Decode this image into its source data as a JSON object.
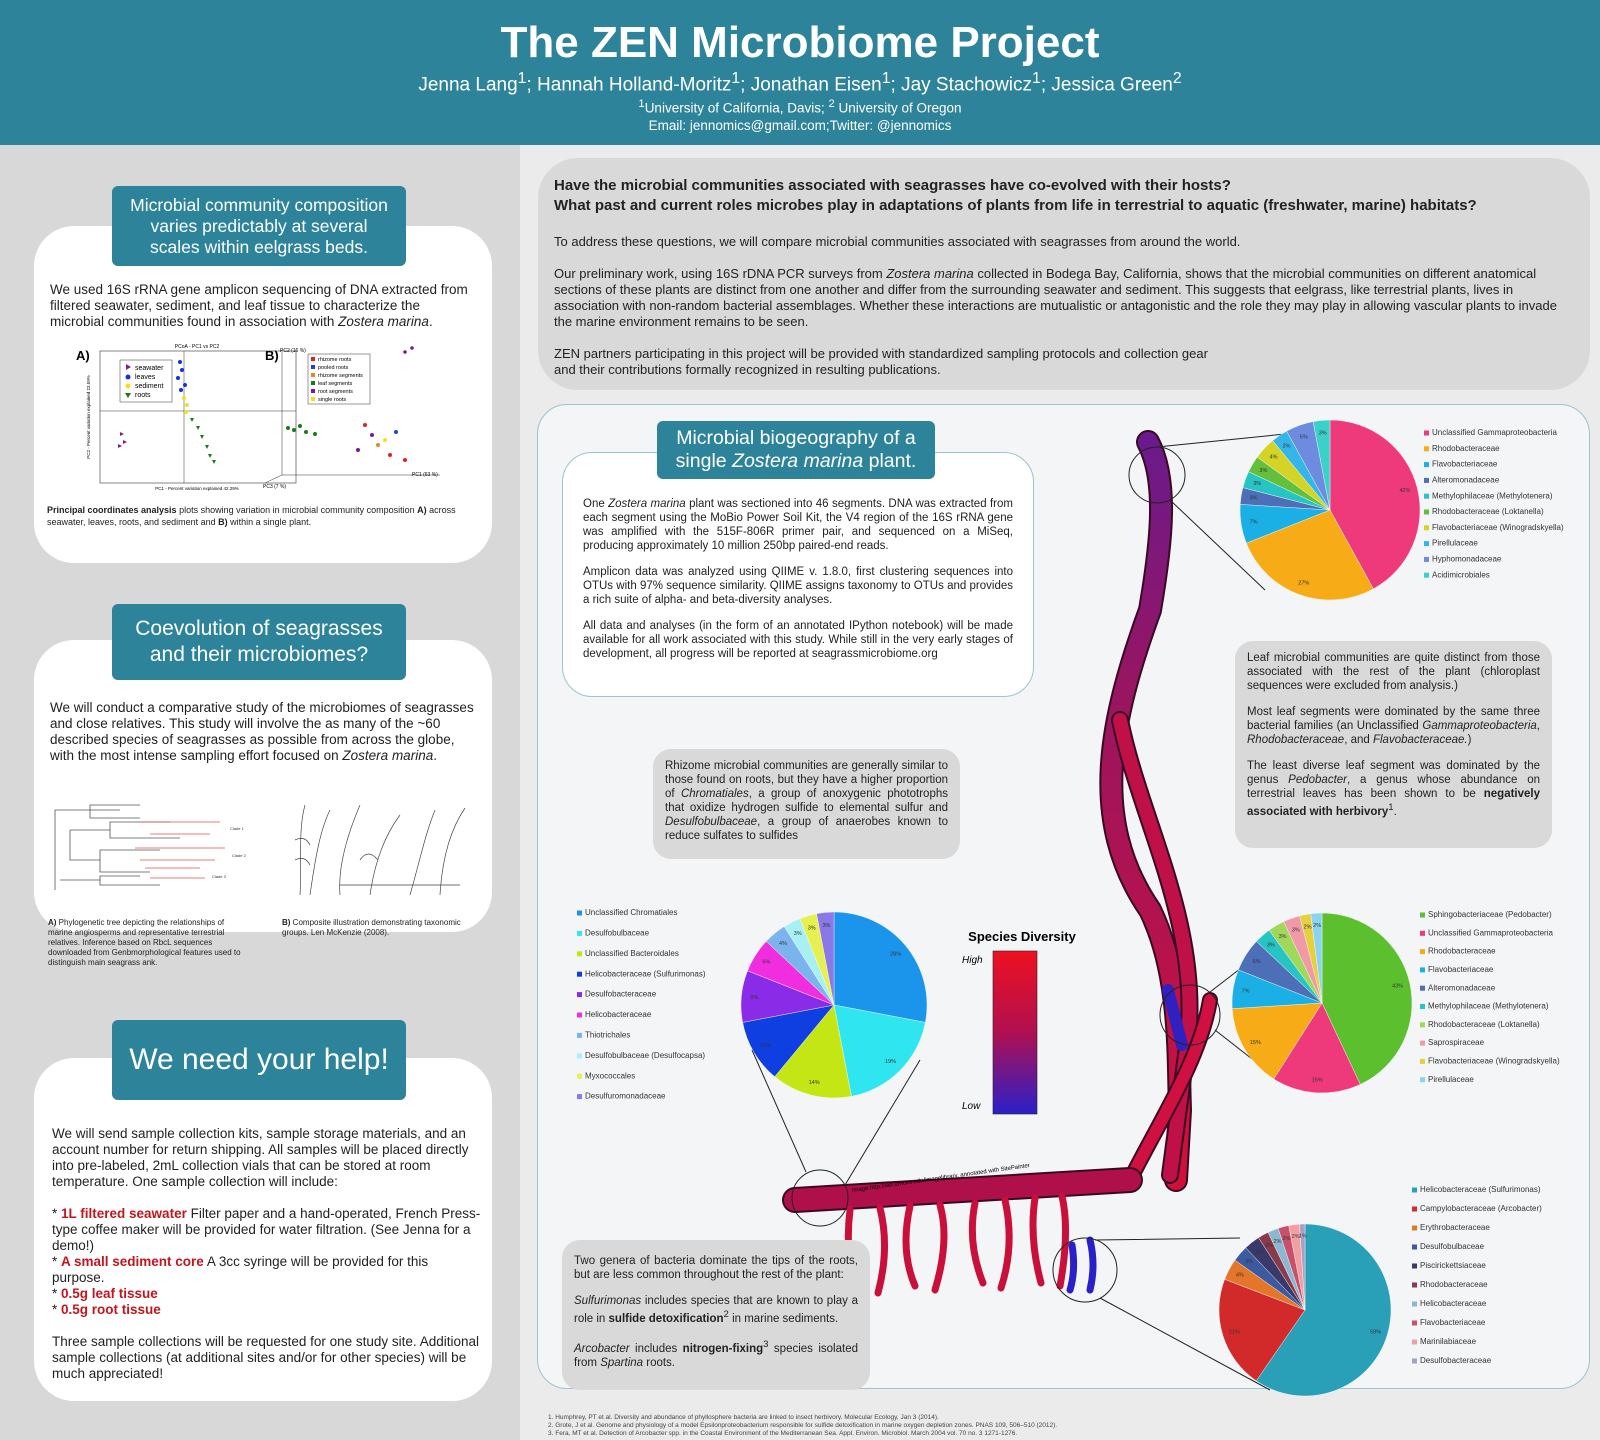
{
  "header": {
    "title": "The ZEN Microbiome Project",
    "authors": [
      "Jenna Lang",
      "1",
      "; Hannah Holland-Moritz",
      "1",
      "; Jonathan Eisen",
      "1",
      "; Jay Stachowicz",
      "1",
      "; Jessica Green",
      "2"
    ],
    "affiliations": [
      "1",
      "University of California, Davis; ",
      "2",
      " University of Oregon"
    ],
    "contact": "Email: jennomics@gmail.com;Twitter: @jennomics"
  },
  "composition": {
    "heading": "Microbial community composition varies predictably at several scales within eelgrass beds.",
    "body": [
      "We used 16S rRNA gene amplicon sequencing of DNA extracted from filtered seawater, sediment, and leaf tissue to characterize the microbial communities found in association with ",
      "Zostera marina",
      "."
    ],
    "figure": {
      "label_a": "A)",
      "label_b": "B)",
      "plot_title": "PCoA - PC1 vs PC2",
      "legend_a": [
        "seawater",
        "leaves",
        "sediment",
        "roots"
      ],
      "legend_b": [
        "rhizome roots",
        "pooled roots",
        "rhizome segments",
        "leaf segments",
        "root segments",
        "single roots"
      ],
      "x_label_a": "PC1 - Percent variation explained 42.29%",
      "y_label_a": "PC2 - Percent variation explained 23.59%",
      "axis_b": [
        "PC2 (16 %)",
        "PC1 (63 %)",
        "PC3 (7 %)"
      ]
    },
    "caption": [
      "Principal coordinates analysis",
      " plots showing variation in microbial community composition ",
      "A)",
      " across seawater, leaves, roots, and sediment and ",
      "B)",
      " within a single plant."
    ]
  },
  "coevolution": {
    "heading": "Coevolution of seagrasses and their microbiomes?",
    "body": [
      "We will conduct a comparative study of the microbiomes of seagrasses and close relatives. This study will involve the as many of the ~60 described species of seagrasses as possible from across the globe, with the most intense sampling effort focused on ",
      "Zostera marina",
      "."
    ],
    "clades": [
      "Clade 1",
      "Clade 2",
      "Clade 3"
    ],
    "tree_caption": [
      "A)",
      " Phylogenetic tree depicting the relationships of marine angiosperms and representative terrestrial relatives. Inference based on RbcL sequences downloaded from Genbmorphological features used to distinguish main seagrass ank."
    ],
    "illustration_caption": [
      "B)",
      " Composite illustration demonstrating taxonomic groups. Len McKenzie (2008)."
    ]
  },
  "help": {
    "heading": "We need your help!",
    "intro": "We will send sample collection kits, sample storage materials, and an account number for return shipping. All samples will be placed directly into pre-labeled, 2mL collection vials that can be stored at room temperature. One sample collection will include:",
    "items": [
      [
        "* ",
        "1L filtered seawater",
        " Filter paper and a hand-operated, French Press-type coffee maker will be provided for water filtration. (See Jenna for a demo!)"
      ],
      [
        "* ",
        "A small sediment core",
        " A 3cc syringe will be provided for this purpose."
      ],
      [
        "* ",
        "0.5g leaf tissue"
      ],
      [
        "* ",
        "0.5g root tissue"
      ]
    ],
    "closing": "Three sample collections will be requested for one study site. Additional sample collections (at additional sites and/or for other species) will be much appreciated!"
  },
  "questions": {
    "lines": [
      "Have  the microbial communities associated with seagrasses have co-evolved with their hosts?",
      "What past and current roles microbes play in adaptations of plants from life in terrestrial to aquatic (freshwater, marine) habitats?"
    ],
    "p1": "To address these questions, we will compare microbial communities associated with seagrasses from around the world.",
    "p2": [
      "Our preliminary work, using 16S rDNA PCR surveys from ",
      "Zostera marina",
      " collected in Bodega Bay, California, shows that the microbial communities on different anatomical sections of these plants are distinct from one another and differ from the surrounding seawater and sediment. This suggests that eelgrass, like terrestrial plants, lives in association with non-random bacterial assemblages. Whether these interactions are mutualistic or antagonistic and the role they may play in allowing vascular plants to invade the marine environment remains to be seen."
    ],
    "p3": [
      "ZEN partners participating in this project will be provided with standardized sampling protocols and collection gear",
      "and their contributions formally recognized in resulting publications."
    ]
  },
  "biogeography": {
    "heading": [
      "Microbial biogeography of a",
      "single ",
      "Zostera marina",
      " plant."
    ],
    "p1": [
      "One ",
      "Zostera marina",
      " plant was sectioned into 46 segments.  DNA was extracted from each segment using the MoBio Power Soil Kit, the V4 region of the 16S rRNA gene was amplified with the 515F-806R primer pair, and sequenced  on a MiSeq, producing approximately  10 million 250bp paired-end  reads."
    ],
    "p2": "Amplicon data was analyzed using  QIIME v. 1.8.0, first clustering sequences  into OTUs with 97% sequence similarity.  QIIME assigns taxonomy to OTUs and provides a rich suite of alpha-  and beta-diversity analyses.",
    "p3": "All data and analyses (in the form of an annotated  IPython notebook) will be made available for all work associated with this study. While still in the very early stages of development,  all progress will be reported at seagrassmicrobiome.org"
  },
  "notes": {
    "rhizome": [
      "Rhizome microbial communities  are generally  similar to those found on roots, but they have a higher proportion of ",
      "Chromatiales",
      ", a group of anoxygenic  phototrophs that oxidize hydrogen sulfide to elemental sulfur and ",
      "Desulfobulbaceae",
      ", a group of anaerobes known to reduce sulfates to sulfides"
    ],
    "leaf": {
      "p1": "Leaf microbial communities are quite distinct from those associated with the rest of the plant (chloroplast sequences  were excluded  from analysis.)",
      "p2": [
        "Most leaf segments  were dominated by the same three bacterial families (an Unclassified ",
        "Gammaproteobacteria",
        ", ",
        "Rhodobacteraceae",
        ", and ",
        "Flavobacteraceae.",
        ")"
      ],
      "p3": [
        "The least diverse leaf segment  was dominated by the genus ",
        "Pedobacter",
        ", a genus whose abundance  on terrestrial leaves has been shown to be ",
        "negatively associated  with herbivory",
        "1",
        "."
      ]
    },
    "roots": {
      "p1": "Two genera of bacteria dominate the tips of the roots, but are less common throughout the rest of the plant:",
      "p2": [
        "Sulfurimonas",
        " includes  species that are known to play a role in ",
        "sulfide detoxification",
        "2",
        " in marine sediments."
      ],
      "p3": [
        "Arcobacter",
        " includes ",
        "nitrogen-fixing",
        "3",
        " species isolated from ",
        "Spartina",
        " roots."
      ]
    }
  },
  "image_credit": "Image:http://ian.umces.edu/imagelibrary, annotated with SitePainter",
  "diversity": {
    "title": "Species Diversity",
    "high": "High",
    "low": "Low"
  },
  "chart_data": [
    {
      "type": "pie",
      "categories": [
        "Unclassified Gammaproteobacteria",
        "Rhodobacteraceae",
        "Flavobacteriaceae",
        "Alteromonadaceae",
        "Methylophilaceae (Methylotenera)",
        "Rhodobacteraceae (Loktanella)",
        "Flavobacteriaceae (Winogradskyella)",
        "Pirellulaceae",
        "Hyphomonadaceae",
        "Acidimicrobiales"
      ],
      "values": [
        42,
        27,
        7,
        3,
        3,
        3,
        4,
        3,
        5,
        3
      ],
      "value_labels": [
        "42%",
        "27%",
        "7%",
        "3%",
        "3%",
        "3%",
        "4%",
        "3%",
        "5%",
        "3%"
      ],
      "colors": [
        "#ee3a7b",
        "#f7ab16",
        "#1ab0e6",
        "#4c6fb8",
        "#27c4c4",
        "#62c03c",
        "#d4d426",
        "#35b6e8",
        "#6d8ce0",
        "#3ad1c8"
      ]
    },
    {
      "type": "pie",
      "categories": [
        "Unclassified Chromatiales",
        "Desulfobulbaceae",
        "Unclassified Bacteroidales",
        "Helicobacteraceae (Sulfurimonas)",
        "Desulfobacteraceae",
        "Helicobacteraceae",
        "Thiotrichales",
        "Desulfobulbaceae (Desulfocapsa)",
        "Myxococcales",
        "Desulfuromonadaceae"
      ],
      "values": [
        28,
        19,
        14,
        11,
        9,
        6,
        4,
        3,
        3,
        3
      ],
      "value_labels": [
        "28%",
        "19%",
        "14%",
        "11%",
        "9%",
        "6%",
        "4%",
        "3%",
        "3%",
        "3%"
      ],
      "colors": [
        "#1b95ec",
        "#2fe6f0",
        "#c4e614",
        "#0f3fe0",
        "#8a2be8",
        "#f02ee0",
        "#7bb4ec",
        "#a8f0f4",
        "#e6f050",
        "#8878e8"
      ]
    },
    {
      "type": "pie",
      "categories": [
        "Sphingobacteriaceae (Pedobacter)",
        "Unclassified Gammaproteobacteria",
        "Rhodobacteraceae",
        "Flavobacteriaceae",
        "Alteromonadaceae",
        "Methylophilaceae (Methylotenera)",
        "Rhodobacteraceae (Loktanella)",
        "Saprospiraceae",
        "Flavobacteriaceae (Winogradskyella)",
        "Pirellulaceae"
      ],
      "values": [
        43,
        16,
        15,
        7,
        6,
        3,
        3,
        3,
        2,
        2
      ],
      "value_labels": [
        "43%",
        "16%",
        "15%",
        "7%",
        "6%",
        "3%",
        "3%",
        "3%",
        "2%",
        "2%"
      ],
      "colors": [
        "#5cc02e",
        "#ee3a7b",
        "#f7ab16",
        "#1ab0e6",
        "#4c6fb8",
        "#27c4c4",
        "#a0d85a",
        "#f09aa8",
        "#e6d040",
        "#8ad4f0"
      ]
    },
    {
      "type": "pie",
      "categories": [
        "Helicobacteraceae (Sulfurimonas)",
        "Campylobacteraceae (Arcobacter)",
        "Erythrobacteraceae",
        "Desulfobulbaceae",
        "Piscirickettsiaceae",
        "Rhodobacteraceae",
        "Helicobacteraceae",
        "Flavobacteriaceae",
        "Marinilabiaceae",
        "Desulfobacteraceae"
      ],
      "values": [
        59,
        21,
        4,
        3,
        3,
        2,
        2,
        2,
        2,
        1
      ],
      "value_labels": [
        "59%",
        "21%",
        "4%",
        "3%",
        "3%",
        "2%",
        "2%",
        "2%",
        "2%",
        "1%"
      ],
      "colors": [
        "#2aa0b8",
        "#d22a2a",
        "#e4762a",
        "#3c5aa0",
        "#3a3a6a",
        "#8a3a4a",
        "#8ab8d0",
        "#c8506a",
        "#f0a0a0",
        "#a8a0c8"
      ]
    }
  ],
  "references": [
    "1.     Humphrey, PT et al. Diversity and abundance of phyllosphere bacteria are linked to insect herbivory. Molecular Ecology, Jan 3 (2014).",
    "2.     Grote, J et al. Genome and physiology of a model Epsilonproteobacterium responsible for sulfide detoxification in marine oxygen depletion zones. PNAS 109, 506–510 (2012).",
    "3.     Fera, MT et al. Detection of Arcobacter spp. in the Coastal Environment of the Mediterranean Sea. Appl. Environ. Microbiol. March 2004 vol. 70 no. 3 1271-1276."
  ]
}
